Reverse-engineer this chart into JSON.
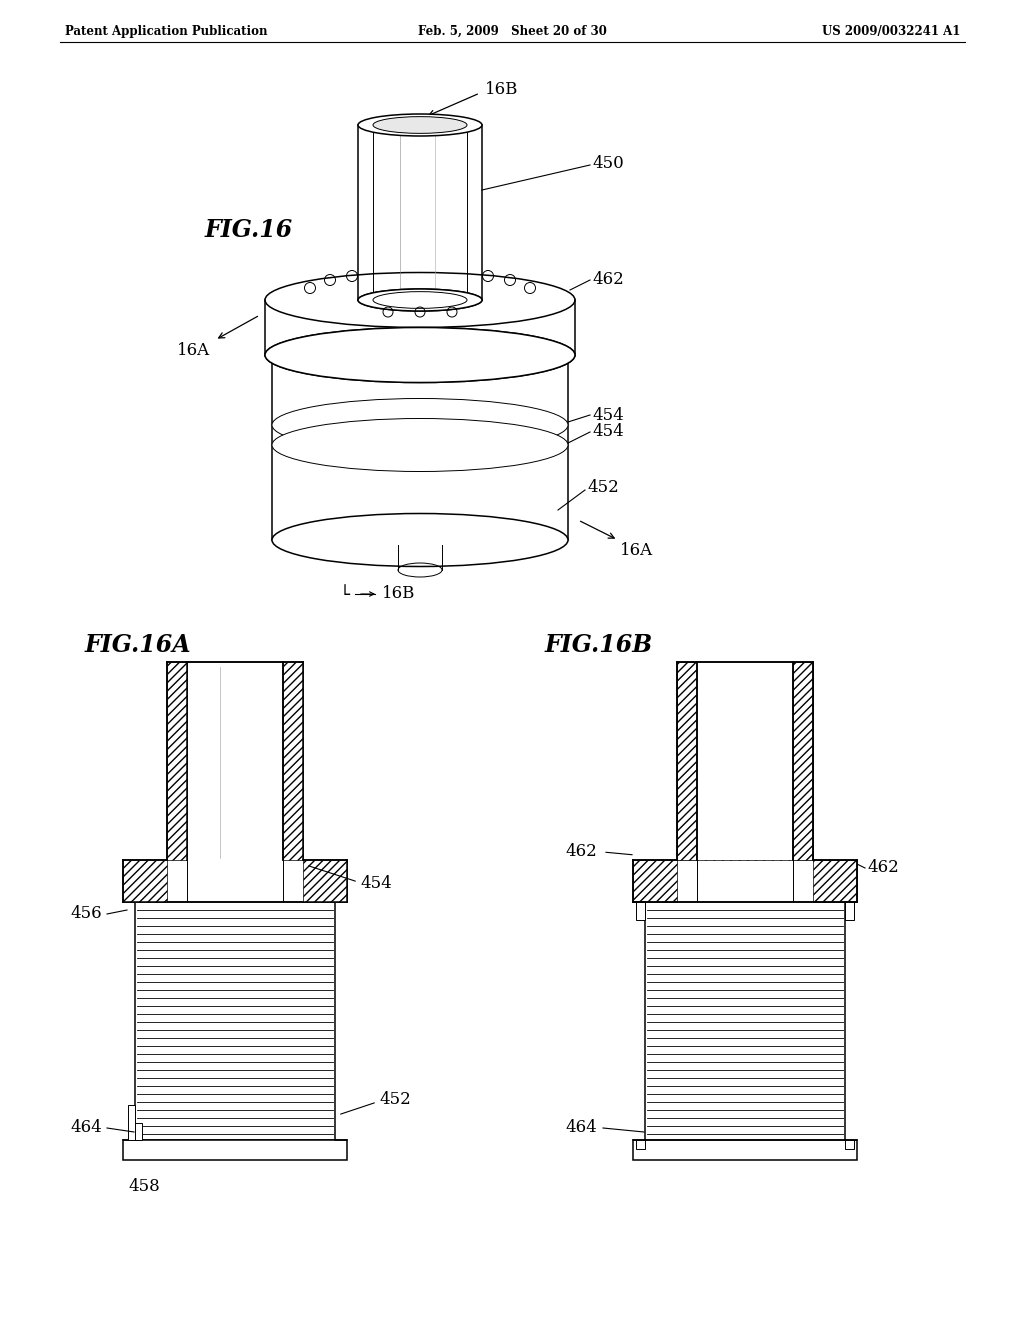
{
  "bg_color": "#ffffff",
  "line_color": "#000000",
  "header_left": "Patent Application Publication",
  "header_center": "Feb. 5, 2009   Sheet 20 of 30",
  "header_right": "US 2009/0032241 A1",
  "fig16_label": "FIG.16",
  "fig16a_label": "FIG.16A",
  "fig16b_label": "FIG.16B"
}
